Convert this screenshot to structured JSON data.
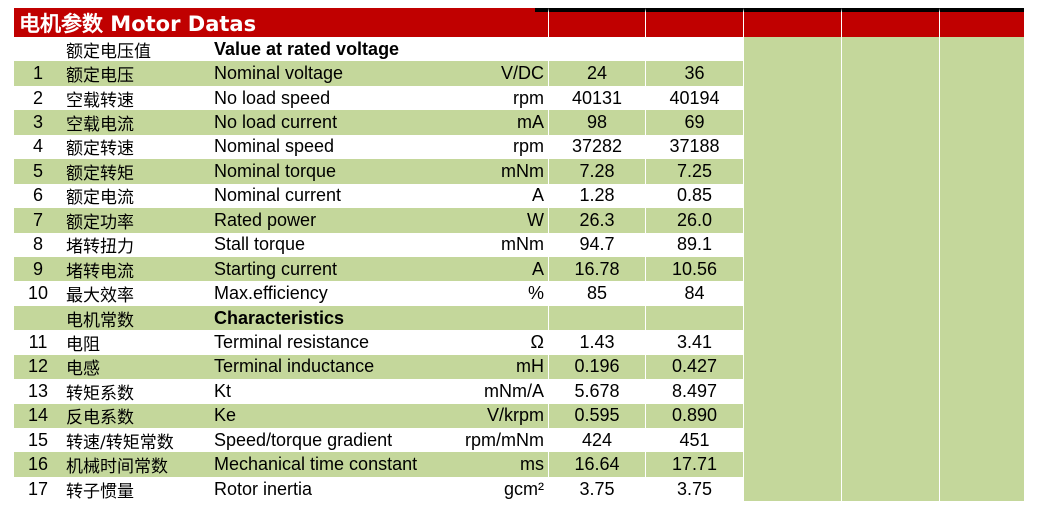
{
  "title": "电机参数 Motor Datas",
  "section_rated": {
    "cn": "额定电压值",
    "en": "Value at rated voltage"
  },
  "section_char": {
    "cn": "电机常数",
    "en": "Characteristics"
  },
  "rows_rated": [
    {
      "num": "1",
      "cn": "额定电压",
      "en": "Nominal voltage",
      "unit": "V/DC",
      "v1": "24",
      "v2": "36"
    },
    {
      "num": "2",
      "cn": "空载转速",
      "en": "No load speed",
      "unit": "rpm",
      "v1": "40131",
      "v2": "40194"
    },
    {
      "num": "3",
      "cn": "空载电流",
      "en": "No load current",
      "unit": "mA",
      "v1": "98",
      "v2": "69"
    },
    {
      "num": "4",
      "cn": "额定转速",
      "en": "Nominal speed",
      "unit": "rpm",
      "v1": "37282",
      "v2": "37188"
    },
    {
      "num": "5",
      "cn": "额定转矩",
      "en": "Nominal torque",
      "unit": "mNm",
      "v1": "7.28",
      "v2": "7.25"
    },
    {
      "num": "6",
      "cn": "额定电流",
      "en": "Nominal current",
      "unit": "A",
      "v1": "1.28",
      "v2": "0.85"
    },
    {
      "num": "7",
      "cn": "额定功率",
      "en": "Rated power",
      "unit": "W",
      "v1": "26.3",
      "v2": "26.0"
    },
    {
      "num": "8",
      "cn": "堵转扭力",
      "en": "Stall torque",
      "unit": "mNm",
      "v1": "94.7",
      "v2": "89.1"
    },
    {
      "num": "9",
      "cn": "堵转电流",
      "en": "Starting current",
      "unit": "A",
      "v1": "16.78",
      "v2": "10.56"
    },
    {
      "num": "10",
      "cn": "最大效率",
      "en": "Max.efficiency",
      "unit": "%",
      "v1": "85",
      "v2": "84"
    }
  ],
  "rows_char": [
    {
      "num": "11",
      "cn": "电阻",
      "en": "Terminal resistance",
      "unit": "Ω",
      "v1": "1.43",
      "v2": "3.41"
    },
    {
      "num": "12",
      "cn": "电感",
      "en": "Terminal inductance",
      "unit": "mH",
      "v1": "0.196",
      "v2": "0.427"
    },
    {
      "num": "13",
      "cn": "转矩系数",
      "en": "Kt",
      "unit": "mNm/A",
      "v1": "5.678",
      "v2": "8.497"
    },
    {
      "num": "14",
      "cn": "反电系数",
      "en": "Ke",
      "unit": "V/krpm",
      "v1": "0.595",
      "v2": "0.890"
    },
    {
      "num": "15",
      "cn": "转速/转矩常数",
      "en": "Speed/torque gradient",
      "unit": "rpm/mNm",
      "v1": "424",
      "v2": "451"
    },
    {
      "num": "16",
      "cn": "机械时间常数",
      "en": "Mechanical time constant",
      "unit": "ms",
      "v1": "16.64",
      "v2": "17.71"
    },
    {
      "num": "17",
      "cn": "转子惯量",
      "en": "Rotor inertia",
      "unit": "gcm²",
      "v1": "3.75",
      "v2": "3.75"
    }
  ],
  "colors": {
    "header_red": "#c00000",
    "row_green": "#c4d79b"
  }
}
